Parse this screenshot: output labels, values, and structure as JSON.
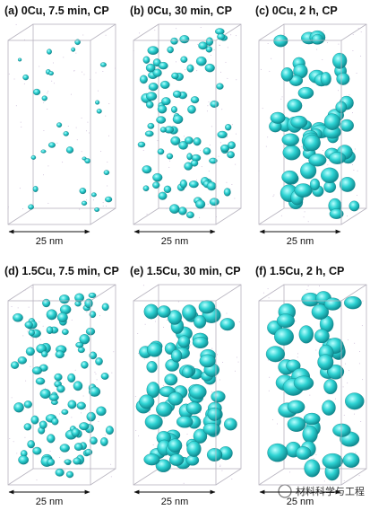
{
  "panels": [
    {
      "label": "(a) 0Cu, 7.5 min, CP",
      "scale": "25 nm"
    },
    {
      "label": "(b) 0Cu, 30 min, CP",
      "scale": "25 nm"
    },
    {
      "label": "(c) 0Cu, 2 h, CP",
      "scale": "25 nm"
    },
    {
      "label": "(d) 1.5Cu, 7.5 min, CP",
      "scale": "25 nm"
    },
    {
      "label": "(e) 1.5Cu, 30 min, CP",
      "scale": "25 nm"
    },
    {
      "label": "(f) 1.5Cu, 2 h, CP",
      "scale": "25 nm"
    }
  ],
  "watermark": "材料科学与工程"
}
